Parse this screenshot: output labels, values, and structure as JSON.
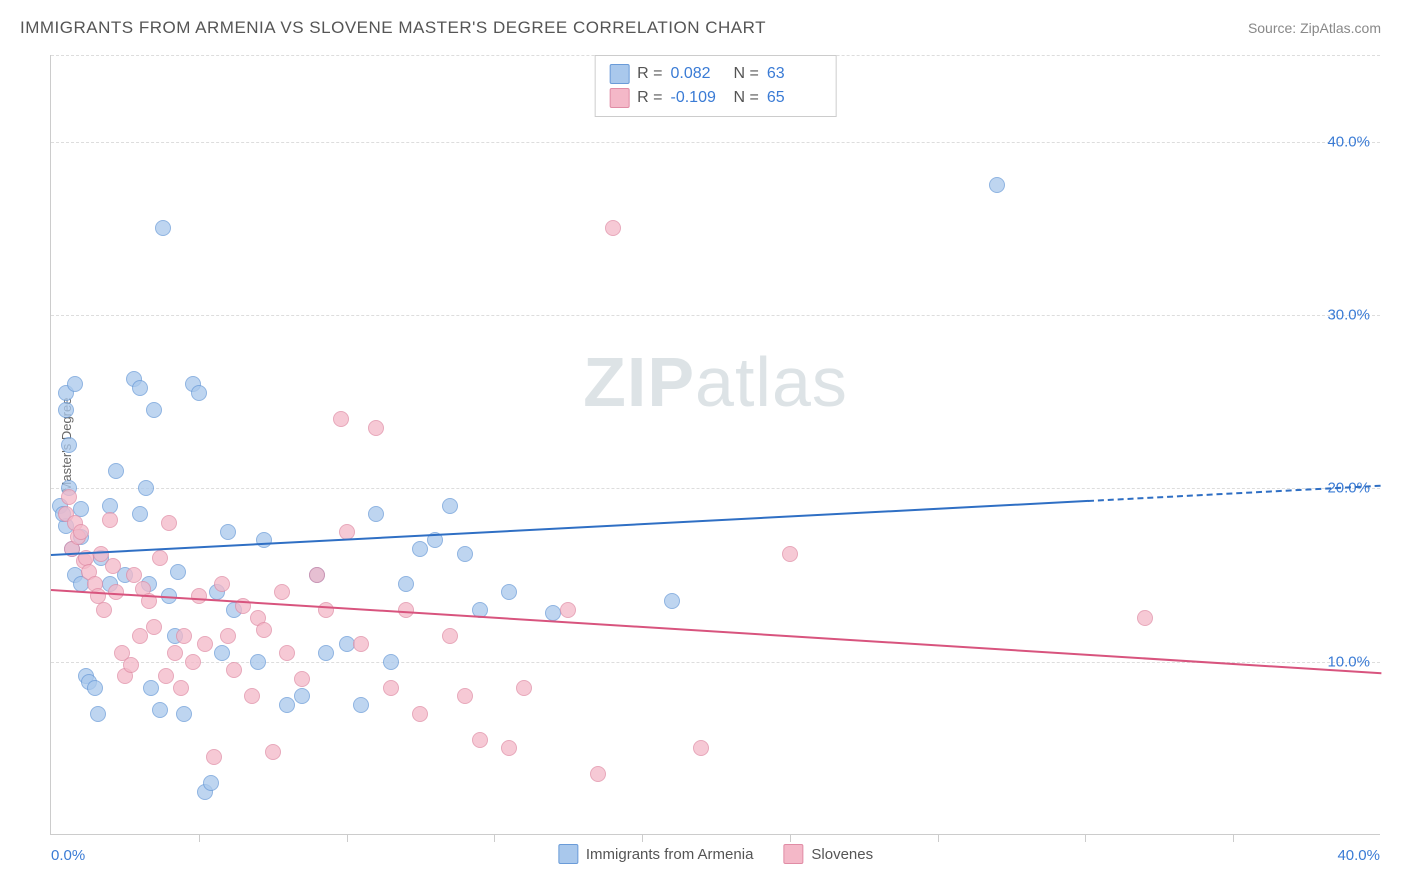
{
  "title": "IMMIGRANTS FROM ARMENIA VS SLOVENE MASTER'S DEGREE CORRELATION CHART",
  "source_prefix": "Source: ",
  "source_name": "ZipAtlas.com",
  "watermark_a": "ZIP",
  "watermark_b": "atlas",
  "chart": {
    "type": "scatter",
    "y_axis_label": "Master's Degree",
    "xlim": [
      0,
      45
    ],
    "ylim": [
      0,
      45
    ],
    "ytick_labels": [
      "10.0%",
      "20.0%",
      "30.0%",
      "40.0%"
    ],
    "ytick_vals": [
      10,
      20,
      30,
      40
    ],
    "xtick_min_label": "0.0%",
    "xtick_max_label": "40.0%",
    "xtick_vals": [
      5,
      10,
      15,
      20,
      25,
      30,
      35,
      40
    ],
    "grid_color": "#dddddd",
    "axis_color": "#cccccc",
    "background": "#ffffff",
    "tick_label_color": "#3a7bd5",
    "series": [
      {
        "id": "armenia",
        "label": "Immigrants from Armenia",
        "fill": "#a9c8ec",
        "stroke": "#6a9bd8",
        "trend_color": "#2f6fc4",
        "R": "0.082",
        "N": "63",
        "trend": {
          "x1": 0,
          "y1": 16.2,
          "x2": 45,
          "y2": 20.2,
          "solid_frac": 0.78
        },
        "points": [
          [
            0.3,
            19
          ],
          [
            0.5,
            25.5
          ],
          [
            0.5,
            24.5
          ],
          [
            0.6,
            22.5
          ],
          [
            0.8,
            26
          ],
          [
            0.5,
            17.8
          ],
          [
            0.4,
            18.5
          ],
          [
            0.6,
            20
          ],
          [
            0.7,
            16.5
          ],
          [
            0.8,
            15
          ],
          [
            1.0,
            18.8
          ],
          [
            1.0,
            17.2
          ],
          [
            1.0,
            14.5
          ],
          [
            1.2,
            9.2
          ],
          [
            1.3,
            8.8
          ],
          [
            1.5,
            8.5
          ],
          [
            1.6,
            7
          ],
          [
            1.7,
            16
          ],
          [
            2.0,
            19
          ],
          [
            2.0,
            14.5
          ],
          [
            2.2,
            21
          ],
          [
            2.5,
            15
          ],
          [
            2.8,
            26.3
          ],
          [
            3.0,
            25.8
          ],
          [
            3.0,
            18.5
          ],
          [
            3.2,
            20
          ],
          [
            3.3,
            14.5
          ],
          [
            3.4,
            8.5
          ],
          [
            3.5,
            24.5
          ],
          [
            3.7,
            7.2
          ],
          [
            3.8,
            35
          ],
          [
            4.0,
            13.8
          ],
          [
            4.2,
            11.5
          ],
          [
            4.3,
            15.2
          ],
          [
            4.5,
            7
          ],
          [
            4.8,
            26
          ],
          [
            5.0,
            25.5
          ],
          [
            5.2,
            2.5
          ],
          [
            5.4,
            3
          ],
          [
            5.6,
            14
          ],
          [
            5.8,
            10.5
          ],
          [
            6.0,
            17.5
          ],
          [
            6.2,
            13
          ],
          [
            7.0,
            10
          ],
          [
            7.2,
            17
          ],
          [
            8.0,
            7.5
          ],
          [
            8.5,
            8
          ],
          [
            9.0,
            15
          ],
          [
            9.3,
            10.5
          ],
          [
            10.0,
            11
          ],
          [
            10.5,
            7.5
          ],
          [
            11.0,
            18.5
          ],
          [
            11.5,
            10
          ],
          [
            12.0,
            14.5
          ],
          [
            12.5,
            16.5
          ],
          [
            13.0,
            17
          ],
          [
            13.5,
            19
          ],
          [
            14.0,
            16.2
          ],
          [
            14.5,
            13
          ],
          [
            15.5,
            14
          ],
          [
            17.0,
            12.8
          ],
          [
            21.0,
            13.5
          ],
          [
            32.0,
            37.5
          ]
        ]
      },
      {
        "id": "slovenes",
        "label": "Slovenes",
        "fill": "#f4b8c8",
        "stroke": "#e08ca5",
        "trend_color": "#d8547e",
        "R": "-0.109",
        "N": "65",
        "trend": {
          "x1": 0,
          "y1": 14.2,
          "x2": 45,
          "y2": 9.4,
          "solid_frac": 1.0
        },
        "points": [
          [
            0.5,
            18.5
          ],
          [
            0.6,
            19.5
          ],
          [
            0.7,
            16.5
          ],
          [
            0.8,
            18
          ],
          [
            0.9,
            17.2
          ],
          [
            1.0,
            17.5
          ],
          [
            1.1,
            15.8
          ],
          [
            1.2,
            16
          ],
          [
            1.3,
            15.2
          ],
          [
            1.5,
            14.5
          ],
          [
            1.6,
            13.8
          ],
          [
            1.7,
            16.2
          ],
          [
            1.8,
            13
          ],
          [
            2.0,
            18.2
          ],
          [
            2.1,
            15.5
          ],
          [
            2.2,
            14
          ],
          [
            2.4,
            10.5
          ],
          [
            2.5,
            9.2
          ],
          [
            2.7,
            9.8
          ],
          [
            2.8,
            15
          ],
          [
            3.0,
            11.5
          ],
          [
            3.1,
            14.2
          ],
          [
            3.3,
            13.5
          ],
          [
            3.5,
            12
          ],
          [
            3.7,
            16
          ],
          [
            3.9,
            9.2
          ],
          [
            4.0,
            18
          ],
          [
            4.2,
            10.5
          ],
          [
            4.4,
            8.5
          ],
          [
            4.5,
            11.5
          ],
          [
            4.8,
            10
          ],
          [
            5.0,
            13.8
          ],
          [
            5.2,
            11
          ],
          [
            5.5,
            4.5
          ],
          [
            5.8,
            14.5
          ],
          [
            6.0,
            11.5
          ],
          [
            6.2,
            9.5
          ],
          [
            6.5,
            13.2
          ],
          [
            6.8,
            8
          ],
          [
            7.0,
            12.5
          ],
          [
            7.2,
            11.8
          ],
          [
            7.5,
            4.8
          ],
          [
            7.8,
            14
          ],
          [
            8.0,
            10.5
          ],
          [
            8.5,
            9
          ],
          [
            9.0,
            15
          ],
          [
            9.3,
            13
          ],
          [
            9.8,
            24
          ],
          [
            10.0,
            17.5
          ],
          [
            10.5,
            11
          ],
          [
            11.0,
            23.5
          ],
          [
            11.5,
            8.5
          ],
          [
            12.0,
            13
          ],
          [
            12.5,
            7
          ],
          [
            13.5,
            11.5
          ],
          [
            14.0,
            8
          ],
          [
            14.5,
            5.5
          ],
          [
            15.5,
            5
          ],
          [
            16.0,
            8.5
          ],
          [
            17.5,
            13
          ],
          [
            18.5,
            3.5
          ],
          [
            19.0,
            35
          ],
          [
            22.0,
            5
          ],
          [
            25.0,
            16.2
          ],
          [
            37.0,
            12.5
          ]
        ]
      }
    ]
  },
  "legend_r_label": "R =",
  "legend_n_label": "N ="
}
